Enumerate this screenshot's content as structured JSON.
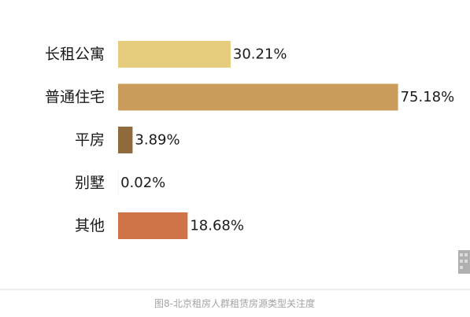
{
  "chart_data": {
    "type": "bar",
    "orientation": "horizontal",
    "categories": [
      "长租公寓",
      "普通住宅",
      "平房",
      "别墅",
      "其他"
    ],
    "values": [
      30.21,
      75.18,
      3.89,
      0.02,
      18.68
    ],
    "value_labels": [
      "30.21%",
      "75.18%",
      "3.89%",
      "0.02%",
      "18.68%"
    ],
    "colors": [
      "#e5cd7d",
      "#c99c5c",
      "#8f6a3c",
      "#b08350",
      "#ce7448"
    ],
    "xlim": [
      0,
      100
    ],
    "grid": false,
    "legend": "none"
  },
  "caption": "图8-北京租房人群租赁房源类型关注度"
}
